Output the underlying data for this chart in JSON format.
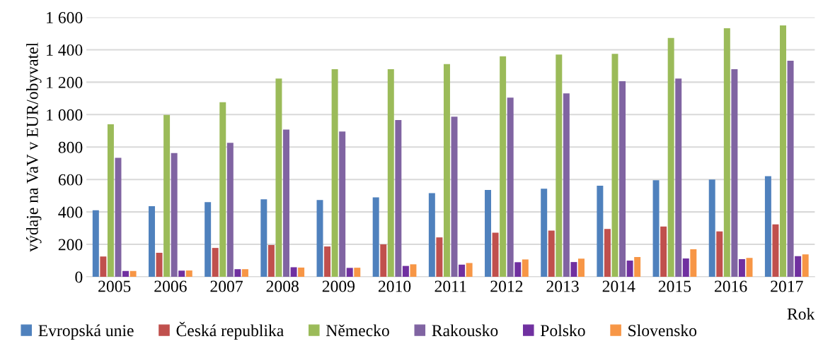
{
  "chart_data": {
    "type": "bar",
    "xlabel": "Rok",
    "ylabel": "výdaje na VaV v EUR/obyvatel",
    "categories": [
      "2005",
      "2006",
      "2007",
      "2008",
      "2009",
      "2010",
      "2011",
      "2012",
      "2013",
      "2014",
      "2015",
      "2016",
      "2017"
    ],
    "series": [
      {
        "name": "Evropská unie",
        "color": "#4f81bd",
        "values": [
          410,
          435,
          460,
          478,
          474,
          490,
          516,
          535,
          543,
          562,
          595,
          600,
          620
        ]
      },
      {
        "name": "Česká republika",
        "color": "#c0504d",
        "values": [
          125,
          148,
          178,
          196,
          187,
          200,
          243,
          272,
          285,
          295,
          310,
          280,
          323
        ]
      },
      {
        "name": "Německo",
        "color": "#9bbb59",
        "values": [
          940,
          998,
          1077,
          1222,
          1280,
          1280,
          1312,
          1360,
          1370,
          1375,
          1473,
          1533,
          1550
        ]
      },
      {
        "name": "Rakousko",
        "color": "#8064a2",
        "values": [
          734,
          763,
          826,
          908,
          896,
          966,
          987,
          1105,
          1131,
          1206,
          1222,
          1280,
          1332
        ]
      },
      {
        "name": "Polsko",
        "color": "#7030a0",
        "values": [
          36,
          38,
          47,
          59,
          55,
          67,
          75,
          90,
          91,
          100,
          113,
          109,
          127
        ]
      },
      {
        "name": "Slovensko",
        "color": "#f79646",
        "values": [
          36,
          39,
          47,
          57,
          56,
          77,
          85,
          107,
          112,
          122,
          170,
          117,
          138
        ]
      }
    ],
    "ylim": [
      0,
      1600
    ],
    "yticks": [
      0,
      {
        "value": 200,
        "label": "200"
      },
      {
        "value": 400,
        "label": "400"
      },
      {
        "value": 600,
        "label": "600"
      },
      {
        "value": 800,
        "label": "800"
      },
      {
        "value": 1000,
        "label": "1 000"
      },
      {
        "value": 1200,
        "label": "1 200"
      },
      {
        "value": 1400,
        "label": "1 400"
      },
      {
        "value": 1600,
        "label": "1 600"
      }
    ],
    "grid": "y",
    "legend": "bottom"
  }
}
